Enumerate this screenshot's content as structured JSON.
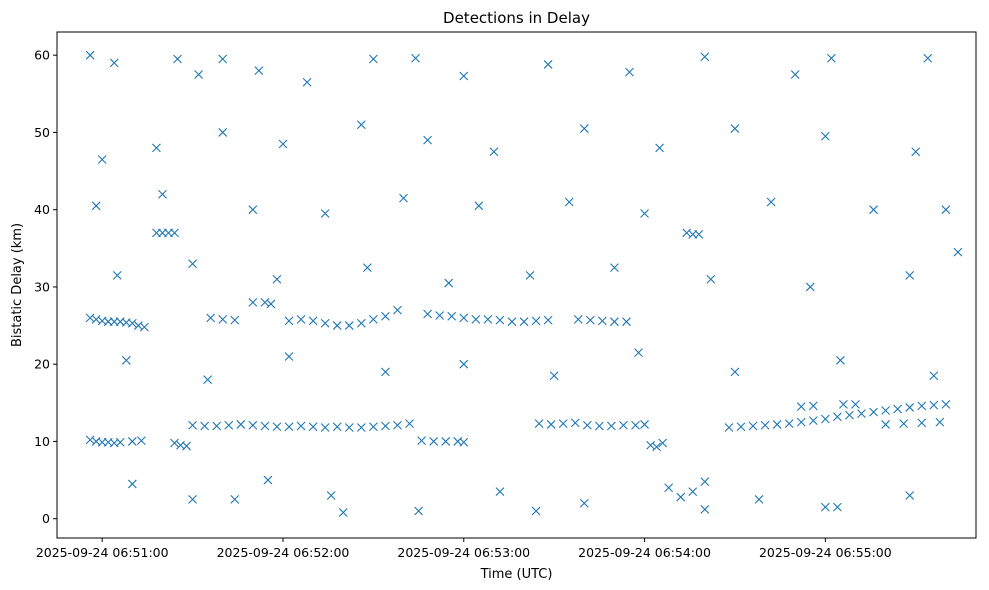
{
  "chart_data": {
    "type": "scatter",
    "title": "Detections in Delay",
    "xlabel": "Time (UTC)",
    "ylabel": "Bistatic Delay (km)",
    "marker": "x",
    "color": "#1f77b4",
    "grid": false,
    "legend": "none",
    "xlim": [
      "2025-09-24 06:50:45",
      "2025-09-24 06:55:50"
    ],
    "ylim": [
      -2.5,
      63
    ],
    "x_ticks": [
      "2025-09-24 06:51:00",
      "2025-09-24 06:52:00",
      "2025-09-24 06:53:00",
      "2025-09-24 06:54:00",
      "2025-09-24 06:55:00"
    ],
    "y_ticks": [
      0,
      10,
      20,
      30,
      40,
      50,
      60
    ],
    "series": [
      {
        "points": [
          [
            "2025-09-24 06:50:56",
            26.0
          ],
          [
            "2025-09-24 06:50:58",
            25.8
          ],
          [
            "2025-09-24 06:51:00",
            25.6
          ],
          [
            "2025-09-24 06:51:02",
            25.5
          ],
          [
            "2025-09-24 06:51:04",
            25.5
          ],
          [
            "2025-09-24 06:51:06",
            25.5
          ],
          [
            "2025-09-24 06:51:08",
            25.4
          ],
          [
            "2025-09-24 06:51:10",
            25.3
          ],
          [
            "2025-09-24 06:51:12",
            25.0
          ],
          [
            "2025-09-24 06:51:14",
            24.8
          ],
          [
            "2025-09-24 06:50:56",
            10.2
          ],
          [
            "2025-09-24 06:50:58",
            10.0
          ],
          [
            "2025-09-24 06:51:00",
            9.9
          ],
          [
            "2025-09-24 06:51:02",
            9.9
          ],
          [
            "2025-09-24 06:51:04",
            9.8
          ],
          [
            "2025-09-24 06:51:06",
            9.9
          ],
          [
            "2025-09-24 06:51:10",
            10.0
          ],
          [
            "2025-09-24 06:51:13",
            10.1
          ],
          [
            "2025-09-24 06:51:18",
            37.0
          ],
          [
            "2025-09-24 06:51:20",
            37.0
          ],
          [
            "2025-09-24 06:51:22",
            37.0
          ],
          [
            "2025-09-24 06:51:24",
            37.0
          ],
          [
            "2025-09-24 06:51:24",
            9.8
          ],
          [
            "2025-09-24 06:51:26",
            9.5
          ],
          [
            "2025-09-24 06:51:28",
            9.4
          ],
          [
            "2025-09-24 06:51:30",
            12.1
          ],
          [
            "2025-09-24 06:51:34",
            12.0
          ],
          [
            "2025-09-24 06:51:38",
            12.0
          ],
          [
            "2025-09-24 06:51:42",
            12.1
          ],
          [
            "2025-09-24 06:51:46",
            12.2
          ],
          [
            "2025-09-24 06:51:50",
            12.1
          ],
          [
            "2025-09-24 06:51:54",
            12.0
          ],
          [
            "2025-09-24 06:51:58",
            11.9
          ],
          [
            "2025-09-24 06:52:02",
            11.9
          ],
          [
            "2025-09-24 06:52:06",
            12.0
          ],
          [
            "2025-09-24 06:52:10",
            11.9
          ],
          [
            "2025-09-24 06:52:14",
            11.8
          ],
          [
            "2025-09-24 06:52:18",
            11.9
          ],
          [
            "2025-09-24 06:52:22",
            11.8
          ],
          [
            "2025-09-24 06:52:26",
            11.8
          ],
          [
            "2025-09-24 06:52:30",
            11.9
          ],
          [
            "2025-09-24 06:52:34",
            12.0
          ],
          [
            "2025-09-24 06:52:38",
            12.1
          ],
          [
            "2025-09-24 06:52:42",
            12.3
          ],
          [
            "2025-09-24 06:51:36",
            26.0
          ],
          [
            "2025-09-24 06:51:40",
            25.8
          ],
          [
            "2025-09-24 06:51:44",
            25.7
          ],
          [
            "2025-09-24 06:51:50",
            28.0
          ],
          [
            "2025-09-24 06:51:54",
            28.0
          ],
          [
            "2025-09-24 06:51:56",
            27.8
          ],
          [
            "2025-09-24 06:52:02",
            25.6
          ],
          [
            "2025-09-24 06:52:06",
            25.8
          ],
          [
            "2025-09-24 06:52:10",
            25.6
          ],
          [
            "2025-09-24 06:52:14",
            25.3
          ],
          [
            "2025-09-24 06:52:18",
            25.0
          ],
          [
            "2025-09-24 06:52:22",
            25.0
          ],
          [
            "2025-09-24 06:52:26",
            25.3
          ],
          [
            "2025-09-24 06:52:30",
            25.8
          ],
          [
            "2025-09-24 06:52:34",
            26.2
          ],
          [
            "2025-09-24 06:52:38",
            27.0
          ],
          [
            "2025-09-24 06:52:46",
            10.1
          ],
          [
            "2025-09-24 06:52:50",
            10.0
          ],
          [
            "2025-09-24 06:52:54",
            10.0
          ],
          [
            "2025-09-24 06:52:58",
            10.0
          ],
          [
            "2025-09-24 06:53:00",
            9.9
          ],
          [
            "2025-09-24 06:52:48",
            26.5
          ],
          [
            "2025-09-24 06:52:52",
            26.3
          ],
          [
            "2025-09-24 06:52:56",
            26.2
          ],
          [
            "2025-09-24 06:53:00",
            26.0
          ],
          [
            "2025-09-24 06:53:04",
            25.8
          ],
          [
            "2025-09-24 06:53:08",
            25.8
          ],
          [
            "2025-09-24 06:53:12",
            25.7
          ],
          [
            "2025-09-24 06:53:16",
            25.5
          ],
          [
            "2025-09-24 06:53:20",
            25.5
          ],
          [
            "2025-09-24 06:53:24",
            25.6
          ],
          [
            "2025-09-24 06:53:28",
            25.7
          ],
          [
            "2025-09-24 06:53:25",
            12.3
          ],
          [
            "2025-09-24 06:53:29",
            12.2
          ],
          [
            "2025-09-24 06:53:33",
            12.3
          ],
          [
            "2025-09-24 06:53:37",
            12.4
          ],
          [
            "2025-09-24 06:53:41",
            12.1
          ],
          [
            "2025-09-24 06:53:45",
            12.0
          ],
          [
            "2025-09-24 06:53:49",
            12.0
          ],
          [
            "2025-09-24 06:53:53",
            12.1
          ],
          [
            "2025-09-24 06:53:57",
            12.1
          ],
          [
            "2025-09-24 06:54:00",
            12.2
          ],
          [
            "2025-09-24 06:53:38",
            25.8
          ],
          [
            "2025-09-24 06:53:42",
            25.7
          ],
          [
            "2025-09-24 06:53:46",
            25.6
          ],
          [
            "2025-09-24 06:53:50",
            25.5
          ],
          [
            "2025-09-24 06:53:54",
            25.5
          ],
          [
            "2025-09-24 06:54:02",
            9.5
          ],
          [
            "2025-09-24 06:54:04",
            9.3
          ],
          [
            "2025-09-24 06:54:06",
            9.8
          ],
          [
            "2025-09-24 06:54:14",
            37.0
          ],
          [
            "2025-09-24 06:54:16",
            36.8
          ],
          [
            "2025-09-24 06:54:18",
            36.8
          ],
          [
            "2025-09-24 06:54:12",
            2.8
          ],
          [
            "2025-09-24 06:54:16",
            3.5
          ],
          [
            "2025-09-24 06:54:20",
            4.8
          ],
          [
            "2025-09-24 06:54:28",
            11.8
          ],
          [
            "2025-09-24 06:54:32",
            11.9
          ],
          [
            "2025-09-24 06:54:36",
            12.0
          ],
          [
            "2025-09-24 06:54:40",
            12.1
          ],
          [
            "2025-09-24 06:54:44",
            12.2
          ],
          [
            "2025-09-24 06:54:48",
            12.3
          ],
          [
            "2025-09-24 06:54:52",
            12.5
          ],
          [
            "2025-09-24 06:54:56",
            12.7
          ],
          [
            "2025-09-24 06:55:00",
            12.9
          ],
          [
            "2025-09-24 06:55:04",
            13.2
          ],
          [
            "2025-09-24 06:55:08",
            13.4
          ],
          [
            "2025-09-24 06:55:12",
            13.6
          ],
          [
            "2025-09-24 06:55:16",
            13.8
          ],
          [
            "2025-09-24 06:55:20",
            14.0
          ],
          [
            "2025-09-24 06:55:24",
            14.2
          ],
          [
            "2025-09-24 06:55:28",
            14.4
          ],
          [
            "2025-09-24 06:55:32",
            14.6
          ],
          [
            "2025-09-24 06:55:36",
            14.7
          ],
          [
            "2025-09-24 06:55:40",
            14.8
          ],
          [
            "2025-09-24 06:54:52",
            14.5
          ],
          [
            "2025-09-24 06:54:56",
            14.6
          ],
          [
            "2025-09-24 06:55:06",
            14.8
          ],
          [
            "2025-09-24 06:55:10",
            14.8
          ],
          [
            "2025-09-24 06:55:20",
            12.2
          ],
          [
            "2025-09-24 06:55:26",
            12.3
          ],
          [
            "2025-09-24 06:55:32",
            12.4
          ],
          [
            "2025-09-24 06:55:38",
            12.5
          ],
          [
            "2025-09-24 06:50:56",
            60.0
          ],
          [
            "2025-09-24 06:51:04",
            59.0
          ],
          [
            "2025-09-24 06:51:25",
            59.5
          ],
          [
            "2025-09-24 06:51:32",
            57.5
          ],
          [
            "2025-09-24 06:51:40",
            59.5
          ],
          [
            "2025-09-24 06:51:52",
            58.0
          ],
          [
            "2025-09-24 06:52:08",
            56.5
          ],
          [
            "2025-09-24 06:52:30",
            59.5
          ],
          [
            "2025-09-24 06:52:44",
            59.6
          ],
          [
            "2025-09-24 06:53:00",
            57.3
          ],
          [
            "2025-09-24 06:53:28",
            58.8
          ],
          [
            "2025-09-24 06:53:55",
            57.8
          ],
          [
            "2025-09-24 06:54:20",
            59.8
          ],
          [
            "2025-09-24 06:54:50",
            57.5
          ],
          [
            "2025-09-24 06:55:02",
            59.6
          ],
          [
            "2025-09-24 06:55:34",
            59.6
          ],
          [
            "2025-09-24 06:51:00",
            46.5
          ],
          [
            "2025-09-24 06:51:18",
            48.0
          ],
          [
            "2025-09-24 06:51:40",
            50.0
          ],
          [
            "2025-09-24 06:52:00",
            48.5
          ],
          [
            "2025-09-24 06:52:26",
            51.0
          ],
          [
            "2025-09-24 06:52:48",
            49.0
          ],
          [
            "2025-09-24 06:53:10",
            47.5
          ],
          [
            "2025-09-24 06:53:40",
            50.5
          ],
          [
            "2025-09-24 06:54:05",
            48.0
          ],
          [
            "2025-09-24 06:54:30",
            50.5
          ],
          [
            "2025-09-24 06:55:00",
            49.5
          ],
          [
            "2025-09-24 06:55:30",
            47.5
          ],
          [
            "2025-09-24 06:50:58",
            40.5
          ],
          [
            "2025-09-24 06:51:20",
            42.0
          ],
          [
            "2025-09-24 06:51:50",
            40.0
          ],
          [
            "2025-09-24 06:52:14",
            39.5
          ],
          [
            "2025-09-24 06:52:40",
            41.5
          ],
          [
            "2025-09-24 06:53:05",
            40.5
          ],
          [
            "2025-09-24 06:53:35",
            41.0
          ],
          [
            "2025-09-24 06:54:00",
            39.5
          ],
          [
            "2025-09-24 06:54:42",
            41.0
          ],
          [
            "2025-09-24 06:55:16",
            40.0
          ],
          [
            "2025-09-24 06:55:40",
            40.0
          ],
          [
            "2025-09-24 06:51:05",
            31.5
          ],
          [
            "2025-09-24 06:51:30",
            33.0
          ],
          [
            "2025-09-24 06:51:58",
            31.0
          ],
          [
            "2025-09-24 06:52:28",
            32.5
          ],
          [
            "2025-09-24 06:52:55",
            30.5
          ],
          [
            "2025-09-24 06:53:22",
            31.5
          ],
          [
            "2025-09-24 06:53:50",
            32.5
          ],
          [
            "2025-09-24 06:54:22",
            31.0
          ],
          [
            "2025-09-24 06:54:55",
            30.0
          ],
          [
            "2025-09-24 06:55:28",
            31.5
          ],
          [
            "2025-09-24 06:55:44",
            34.5
          ],
          [
            "2025-09-24 06:51:08",
            20.5
          ],
          [
            "2025-09-24 06:51:35",
            18.0
          ],
          [
            "2025-09-24 06:52:02",
            21.0
          ],
          [
            "2025-09-24 06:52:34",
            19.0
          ],
          [
            "2025-09-24 06:53:00",
            20.0
          ],
          [
            "2025-09-24 06:53:30",
            18.5
          ],
          [
            "2025-09-24 06:53:58",
            21.5
          ],
          [
            "2025-09-24 06:54:30",
            19.0
          ],
          [
            "2025-09-24 06:55:05",
            20.5
          ],
          [
            "2025-09-24 06:55:36",
            18.5
          ],
          [
            "2025-09-24 06:51:10",
            4.5
          ],
          [
            "2025-09-24 06:51:30",
            2.5
          ],
          [
            "2025-09-24 06:51:55",
            5.0
          ],
          [
            "2025-09-24 06:52:16",
            3.0
          ],
          [
            "2025-09-24 06:52:45",
            1.0
          ],
          [
            "2025-09-24 06:53:12",
            3.5
          ],
          [
            "2025-09-24 06:53:40",
            2.0
          ],
          [
            "2025-09-24 06:54:08",
            4.0
          ],
          [
            "2025-09-24 06:54:38",
            2.5
          ],
          [
            "2025-09-24 06:55:04",
            1.5
          ],
          [
            "2025-09-24 06:55:28",
            3.0
          ],
          [
            "2025-09-24 06:51:44",
            2.5
          ],
          [
            "2025-09-24 06:52:20",
            0.8
          ],
          [
            "2025-09-24 06:53:24",
            1.0
          ],
          [
            "2025-09-24 06:54:20",
            1.2
          ],
          [
            "2025-09-24 06:55:00",
            1.5
          ]
        ]
      }
    ]
  }
}
